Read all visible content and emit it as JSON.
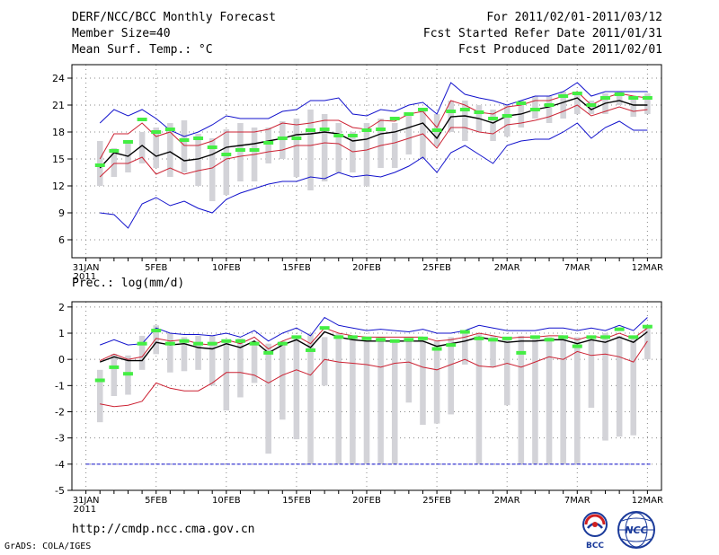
{
  "header": {
    "title": "DERF/NCC/BCC Monthly Forecast",
    "member_size": "Member Size=40",
    "panel1_title": "Mean Surf. Temp.: °C",
    "period": "For 2011/02/01-2011/03/12",
    "refer_date": "Fcst Started Refer Date 2011/01/31",
    "produced_date": "Fcst Produced Date 2011/02/01"
  },
  "footer": {
    "url": "http://cmdp.ncc.cma.gov.cn",
    "grads": "GrADS: COLA/IGES",
    "logo_left": "BCC",
    "logo_right": "NCC"
  },
  "colors": {
    "mean": "#000000",
    "sd": "#cc2233",
    "envelope": "#1111cc",
    "box": "#d3d3d8",
    "obs": "#44ee44",
    "floor": "#1111cc"
  },
  "chart_data": [
    {
      "type": "line",
      "title": "Mean Surf. Temp.: °C",
      "x_days": [
        1,
        2,
        3,
        4,
        5,
        6,
        7,
        8,
        9,
        10,
        11,
        12,
        13,
        14,
        15,
        16,
        17,
        18,
        19,
        20,
        21,
        22,
        23,
        24,
        25,
        26,
        27,
        28,
        29,
        30,
        31,
        32,
        33,
        34,
        35,
        36,
        37,
        38,
        39,
        40
      ],
      "xticks": {
        "days": [
          0,
          5,
          10,
          15,
          20,
          25,
          30,
          35,
          40
        ],
        "labels": [
          "31JAN",
          "5FEB",
          "10FEB",
          "15FEB",
          "20FEB",
          "25FEB",
          "2MAR",
          "7MAR",
          "12MAR"
        ]
      },
      "x_sublabel": "2011",
      "ylim": [
        4,
        25.5
      ],
      "yticks": [
        6,
        9,
        12,
        15,
        18,
        21,
        24
      ],
      "series": [
        {
          "name": "ensemble max",
          "values": [
            19,
            20.5,
            19.8,
            20.5,
            19.5,
            18.2,
            17.5,
            18,
            18.8,
            19.8,
            19.5,
            19.5,
            19.5,
            20.3,
            20.5,
            21.5,
            21.5,
            21.8,
            20,
            19.8,
            20.5,
            20.3,
            21,
            21.3,
            20,
            23.5,
            22.2,
            21.8,
            21.5,
            21,
            21.5,
            22,
            22,
            22.5,
            23.5,
            22,
            22.5,
            22.5,
            22.5,
            22.5
          ]
        },
        {
          "name": "mean+sd",
          "values": [
            15,
            17.8,
            17.8,
            19,
            17.5,
            18,
            16.5,
            16.5,
            17,
            18,
            18,
            18,
            18.3,
            19,
            18.8,
            19,
            19.3,
            19.3,
            18.5,
            18.3,
            19.3,
            19.2,
            20,
            20.3,
            18.5,
            21.5,
            21,
            20.2,
            20,
            20.8,
            21,
            21.5,
            21.5,
            22,
            22.5,
            21,
            21.8,
            22.3,
            22,
            21.8
          ]
        },
        {
          "name": "ensemble mean",
          "values": [
            14,
            15.7,
            15.3,
            16.5,
            15.3,
            15.8,
            14.8,
            15,
            15.5,
            16.3,
            16.5,
            16.7,
            17,
            17.3,
            17.7,
            17.8,
            18,
            17.8,
            17,
            17.2,
            17.8,
            18,
            18.5,
            19,
            17.3,
            19.7,
            19.8,
            19.5,
            19,
            19.8,
            20,
            20.5,
            20.8,
            21.3,
            21.8,
            20.5,
            21.2,
            21.5,
            21,
            21
          ]
        },
        {
          "name": "mean-sd",
          "values": [
            13,
            14.5,
            14.5,
            15.2,
            13.3,
            14,
            13.3,
            13.7,
            14,
            15,
            15.3,
            15.5,
            15.8,
            16,
            16.5,
            16.5,
            16.8,
            16.7,
            15.8,
            16,
            16.5,
            16.8,
            17.3,
            17.8,
            16.2,
            18.5,
            18.5,
            18,
            17.8,
            18.8,
            19,
            19.3,
            19.7,
            20.3,
            21,
            19.8,
            20.3,
            20.8,
            20.3,
            20.5
          ]
        },
        {
          "name": "ensemble min",
          "values": [
            9,
            8.8,
            7.3,
            10,
            10.7,
            9.8,
            10.3,
            9.5,
            9,
            10.5,
            11.2,
            11.7,
            12.2,
            12.5,
            12.5,
            13,
            12.8,
            13.5,
            13,
            13.2,
            13,
            13.5,
            14.2,
            15.2,
            13.5,
            15.7,
            16.5,
            15.5,
            14.5,
            16.5,
            17,
            17.2,
            17.2,
            18,
            19,
            17.3,
            18.5,
            19.2,
            18.2,
            18.2
          ]
        }
      ],
      "boxes": [
        [
          12,
          17
        ],
        [
          13,
          16.2
        ],
        [
          13.5,
          17
        ],
        [
          14.5,
          18
        ],
        [
          14,
          18.5
        ],
        [
          13,
          19
        ],
        [
          13.5,
          19.3
        ],
        [
          12,
          17.8
        ],
        [
          10.3,
          17.3
        ],
        [
          11,
          18.3
        ],
        [
          12.5,
          19
        ],
        [
          12.5,
          18.5
        ],
        [
          14.5,
          18.5
        ],
        [
          15,
          19.2
        ],
        [
          13,
          19.5
        ],
        [
          11.5,
          20.5
        ],
        [
          12.5,
          20
        ],
        [
          13.5,
          19
        ],
        [
          13.5,
          18
        ],
        [
          12,
          19
        ],
        [
          14,
          19.5
        ],
        [
          14,
          19
        ],
        [
          15.5,
          20
        ],
        [
          15,
          20.5
        ],
        [
          16.5,
          20
        ],
        [
          18,
          21.5
        ],
        [
          17,
          21.5
        ],
        [
          18,
          21
        ],
        [
          17,
          20.5
        ],
        [
          17.5,
          21
        ],
        [
          18.5,
          21.5
        ],
        [
          19.5,
          22
        ],
        [
          19,
          22
        ],
        [
          19.5,
          22.5
        ],
        [
          20,
          22.5
        ],
        [
          20,
          21.5
        ],
        [
          20,
          22.3
        ],
        [
          21,
          22.5
        ],
        [
          19.7,
          22
        ],
        [
          20,
          22.3
        ]
      ],
      "observed": [
        14.3,
        15.9,
        16.9,
        19.4,
        18,
        18.3,
        17.1,
        17.3,
        16.3,
        15.5,
        16,
        16,
        16.8,
        17.3,
        17.3,
        18.2,
        18.3,
        17.6,
        17.6,
        18.2,
        18.3,
        19.5,
        20,
        20.5,
        18.2,
        20.3,
        20.5,
        20.2,
        19.5,
        19.8,
        21.2,
        20.5,
        21,
        22,
        22.3,
        21,
        21.8,
        22.2,
        21.8,
        21.8
      ]
    },
    {
      "type": "line",
      "title": "Prec.: log(mm/d)",
      "x_days": [
        1,
        2,
        3,
        4,
        5,
        6,
        7,
        8,
        9,
        10,
        11,
        12,
        13,
        14,
        15,
        16,
        17,
        18,
        19,
        20,
        21,
        22,
        23,
        24,
        25,
        26,
        27,
        28,
        29,
        30,
        31,
        32,
        33,
        34,
        35,
        36,
        37,
        38,
        39,
        40
      ],
      "xticks": {
        "days": [
          0,
          5,
          10,
          15,
          20,
          25,
          30,
          35,
          40
        ],
        "labels": [
          "31JAN",
          "5FEB",
          "10FEB",
          "15FEB",
          "20FEB",
          "25FEB",
          "2MAR",
          "7MAR",
          "12MAR"
        ]
      },
      "x_sublabel": "2011",
      "ylim": [
        -5,
        2.2
      ],
      "yticks": [
        -5,
        -4,
        -3,
        -2,
        -1,
        0,
        1,
        2
      ],
      "floor_value": -4,
      "series": [
        {
          "name": "ensemble max",
          "values": [
            0.55,
            0.75,
            0.55,
            0.6,
            1.2,
            1,
            0.95,
            0.95,
            0.9,
            1,
            0.85,
            1.1,
            0.7,
            1,
            1.2,
            0.9,
            1.6,
            1.3,
            1.2,
            1.1,
            1.15,
            1.1,
            1.05,
            1.15,
            1,
            1,
            1.1,
            1.3,
            1.2,
            1.1,
            1.1,
            1.1,
            1.2,
            1.2,
            1.1,
            1.2,
            1.1,
            1.3,
            1.1,
            1.6
          ]
        },
        {
          "name": "mean+sd",
          "values": [
            -0.05,
            0.2,
            0,
            0.1,
            0.8,
            0.7,
            0.75,
            0.6,
            0.55,
            0.75,
            0.6,
            0.85,
            0.4,
            0.7,
            0.9,
            0.6,
            1.2,
            1,
            0.9,
            0.85,
            0.85,
            0.85,
            0.85,
            0.85,
            0.7,
            0.75,
            0.85,
            1,
            0.9,
            0.8,
            0.85,
            0.85,
            0.9,
            0.9,
            0.75,
            0.9,
            0.8,
            1,
            0.8,
            1.2
          ]
        },
        {
          "name": "ensemble mean",
          "values": [
            -0.1,
            0.1,
            -0.05,
            -0.05,
            0.65,
            0.55,
            0.6,
            0.45,
            0.4,
            0.6,
            0.45,
            0.7,
            0.25,
            0.55,
            0.75,
            0.45,
            1.05,
            0.85,
            0.75,
            0.7,
            0.7,
            0.7,
            0.7,
            0.7,
            0.5,
            0.6,
            0.7,
            0.85,
            0.75,
            0.65,
            0.7,
            0.7,
            0.75,
            0.75,
            0.6,
            0.75,
            0.65,
            0.85,
            0.65,
            1.05
          ]
        },
        {
          "name": "mean-sd",
          "values": [
            -1.7,
            -1.8,
            -1.75,
            -1.6,
            -0.9,
            -1.1,
            -1.2,
            -1.2,
            -0.9,
            -0.5,
            -0.5,
            -0.6,
            -0.9,
            -0.6,
            -0.4,
            -0.6,
            0,
            -0.1,
            -0.15,
            -0.2,
            -0.3,
            -0.15,
            -0.1,
            -0.3,
            -0.4,
            -0.2,
            0,
            -0.25,
            -0.3,
            -0.15,
            -0.3,
            -0.1,
            0.1,
            0,
            0.3,
            0.15,
            0.2,
            0.1,
            -0.1,
            0.7
          ]
        },
        {
          "name": "ensemble min",
          "values": [
            -4,
            -4,
            -4,
            -4,
            -4,
            -4,
            -4,
            -4,
            -4,
            -4,
            -4,
            -4,
            -4,
            -4,
            -4,
            -4,
            -4,
            -4,
            -4,
            -4,
            -4,
            -4,
            -4,
            -4,
            -4,
            -4,
            -4,
            -4,
            -4,
            -4,
            -4,
            -4,
            -4,
            -4,
            -4,
            -4,
            -4,
            -4,
            -4,
            -4
          ]
        }
      ],
      "boxes": [
        [
          -2.4,
          -0.4
        ],
        [
          -1.4,
          0.2
        ],
        [
          -1.35,
          0.15
        ],
        [
          -0.4,
          0.9
        ],
        [
          0.2,
          1.3
        ],
        [
          -0.5,
          1
        ],
        [
          -0.45,
          0.85
        ],
        [
          -0.4,
          0.9
        ],
        [
          -1,
          0.9
        ],
        [
          -1.95,
          0.7
        ],
        [
          -1.45,
          0.8
        ],
        [
          -0.9,
          0.7
        ],
        [
          -3.6,
          0.6
        ],
        [
          -2.3,
          0.7
        ],
        [
          -3.05,
          0.9
        ],
        [
          -4,
          1
        ],
        [
          -1,
          0.85
        ],
        [
          -4,
          1
        ],
        [
          -4,
          0.85
        ],
        [
          -4,
          0.7
        ],
        [
          -4,
          0.85
        ],
        [
          -4,
          0.7
        ],
        [
          -1.65,
          0.7
        ],
        [
          -2.5,
          0.85
        ],
        [
          -2.45,
          0.7
        ],
        [
          -2.1,
          0.85
        ],
        [
          -0.2,
          1
        ],
        [
          -4,
          1
        ],
        [
          -0.3,
          0.9
        ],
        [
          -1.75,
          0.85
        ],
        [
          -4,
          0.9
        ],
        [
          -4,
          0.9
        ],
        [
          -4,
          0.85
        ],
        [
          -4,
          0.9
        ],
        [
          -4,
          0.85
        ],
        [
          -1.85,
          0.9
        ],
        [
          -3.1,
          1
        ],
        [
          -2.95,
          0.9
        ],
        [
          -2.9,
          0.8
        ],
        [
          0,
          1.3
        ]
      ],
      "observed": [
        -0.8,
        -0.3,
        -0.55,
        0.6,
        1.1,
        0.6,
        0.7,
        0.6,
        0.6,
        0.7,
        0.7,
        0.6,
        0.25,
        0.6,
        0.85,
        0.35,
        1.2,
        0.85,
        0.85,
        0.8,
        0.75,
        0.7,
        0.75,
        0.8,
        0.4,
        0.55,
        1.05,
        0.8,
        0.75,
        0.8,
        0.25,
        0.85,
        0.75,
        0.85,
        0.5,
        0.85,
        0.85,
        1.15,
        0.85,
        1.25
      ]
    }
  ]
}
